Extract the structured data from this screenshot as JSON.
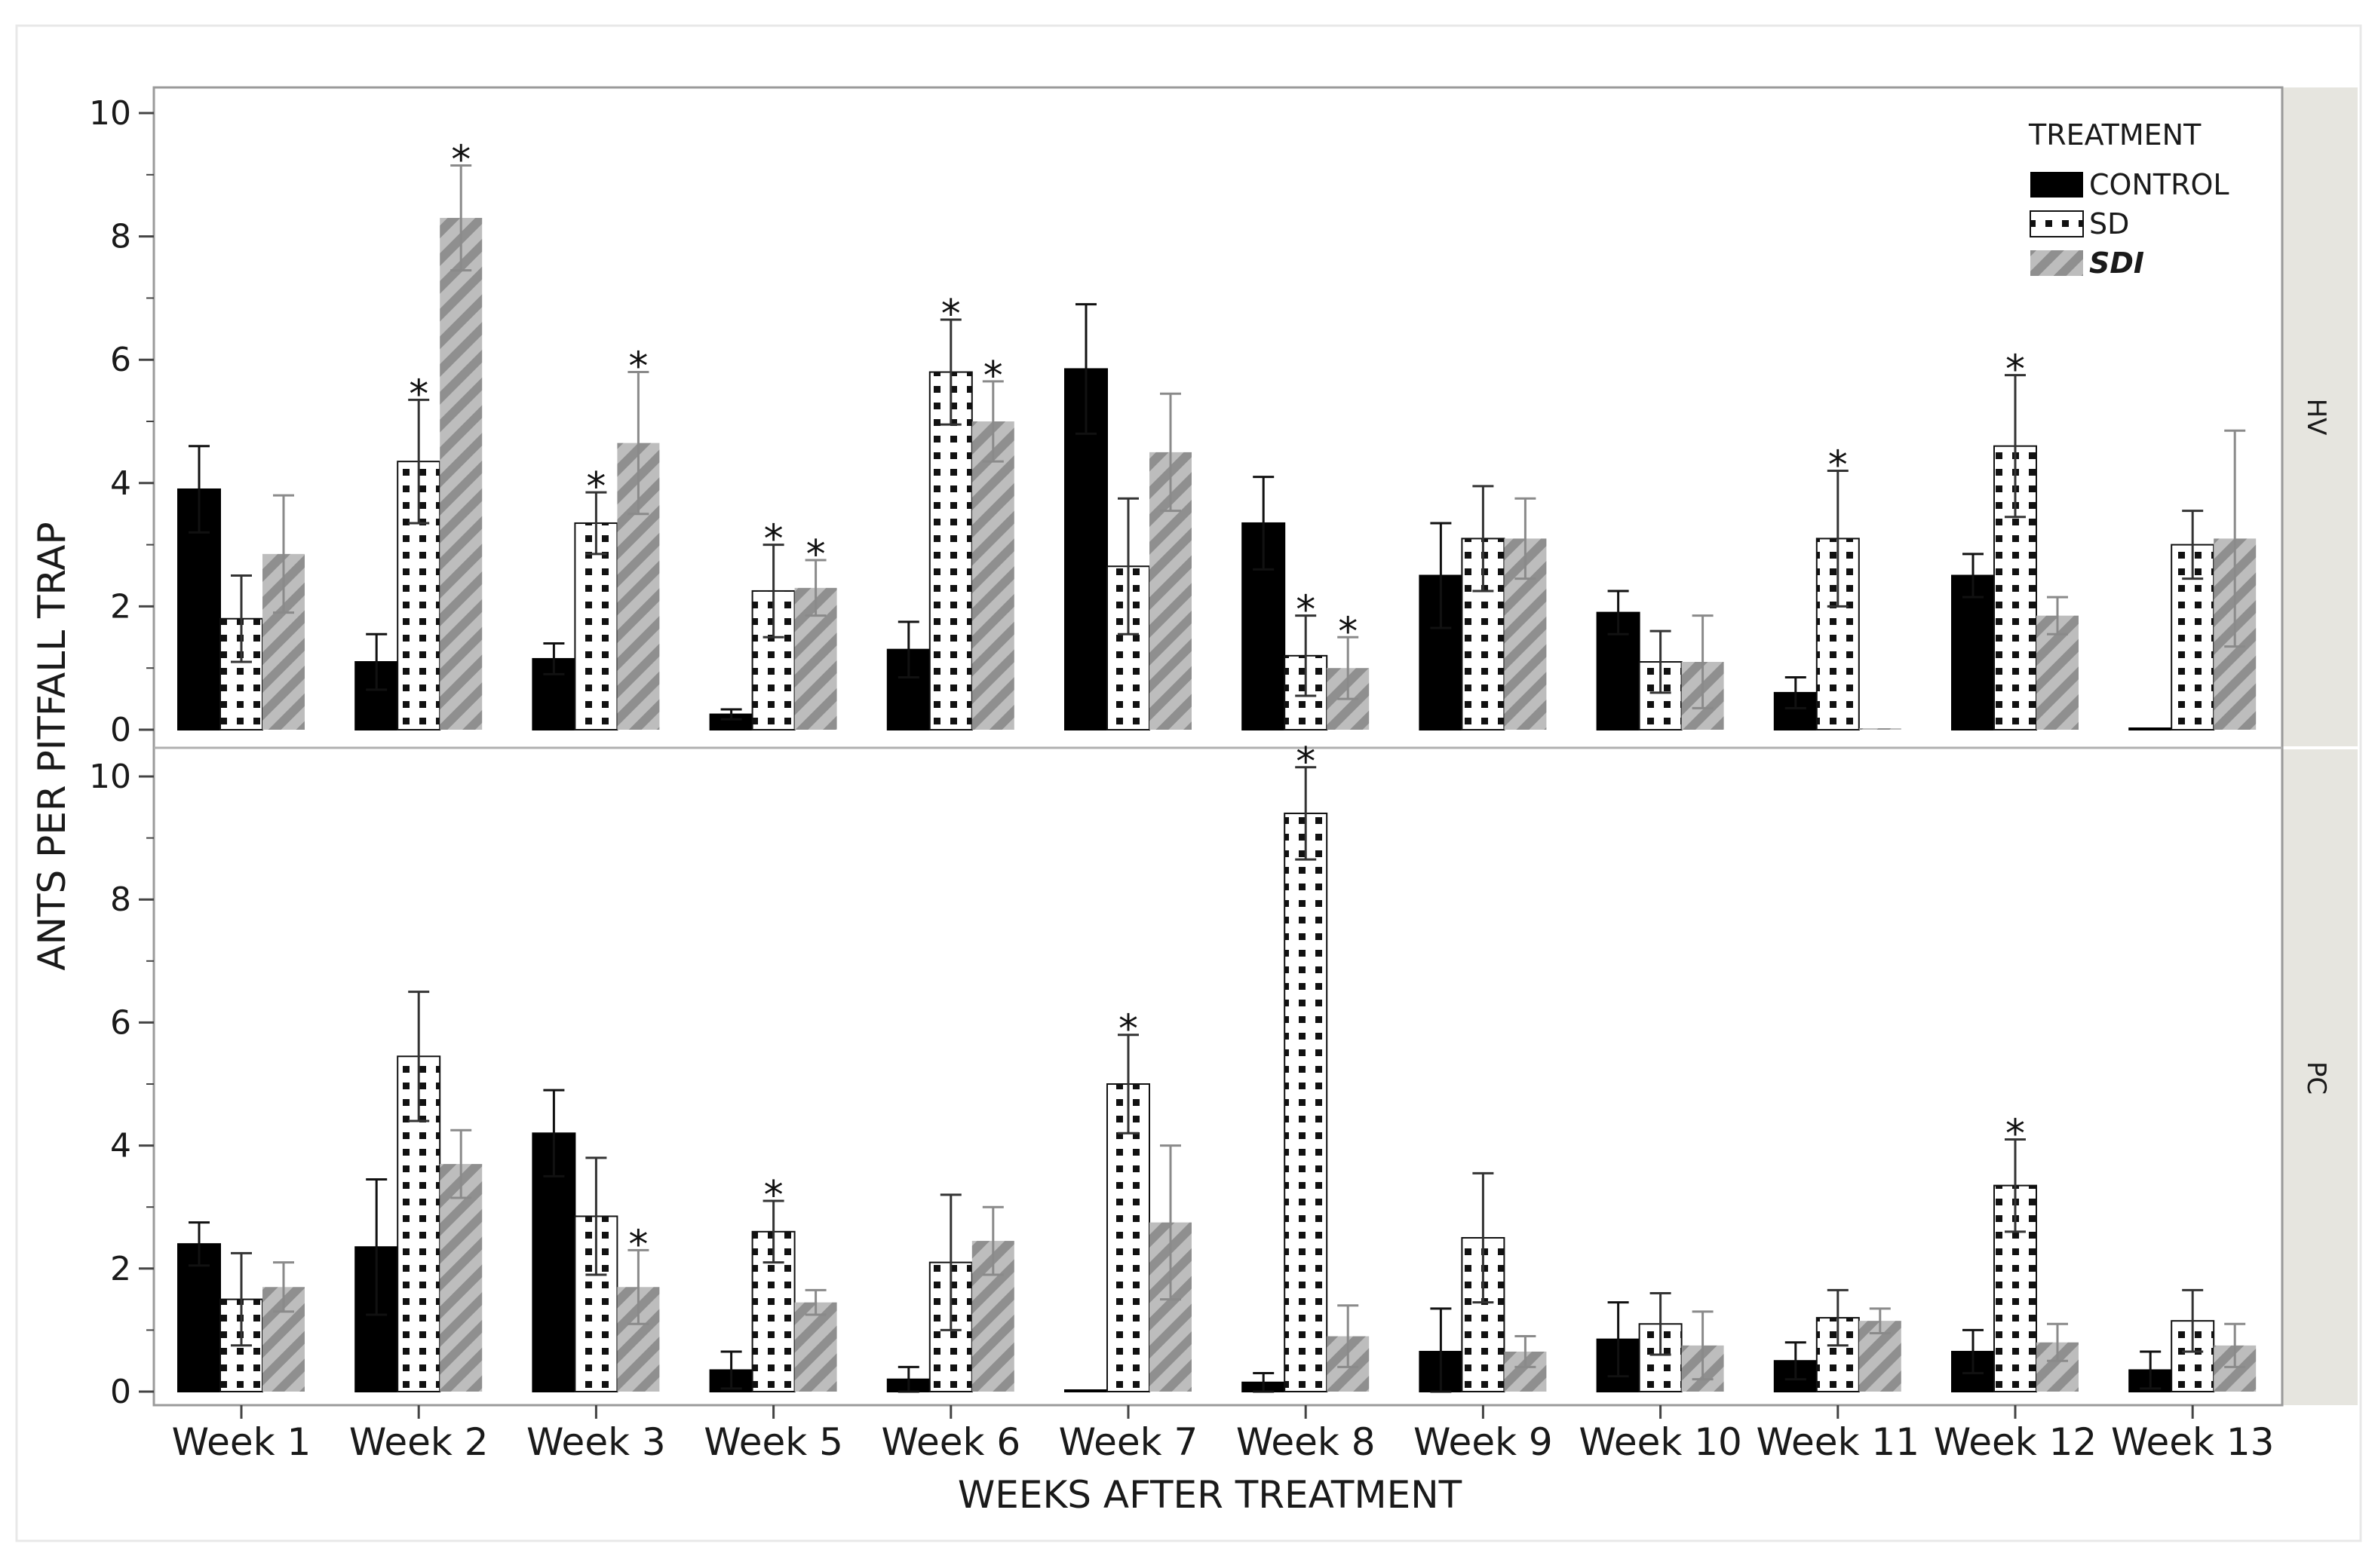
{
  "chart_data": {
    "type": "bar",
    "ylabel": "ANTS PER PITFALL TRAP",
    "xlabel": "WEEKS AFTER TREATMENT",
    "ylim": [
      0,
      10
    ],
    "yticks": [
      0,
      2,
      4,
      6,
      8,
      10
    ],
    "legend": {
      "title": "TREATMENT",
      "placement": "top-right",
      "entries": [
        "CONTROL",
        "SD",
        "SDI"
      ]
    },
    "categories": [
      "Week 1",
      "Week 2",
      "Week 3",
      "Week 5",
      "Week 6",
      "Week 7",
      "Week 8",
      "Week 9",
      "Week 10",
      "Week 11",
      "Week 12",
      "Week 13"
    ],
    "panels": [
      {
        "label": "HV",
        "series": [
          {
            "name": "CONTROL",
            "values": [
              3.9,
              1.1,
              1.15,
              0.25,
              1.3,
              5.85,
              3.35,
              2.5,
              1.9,
              0.6,
              2.5,
              0.0
            ],
            "errors": [
              0.7,
              0.45,
              0.25,
              0.08,
              0.45,
              1.05,
              0.75,
              0.85,
              0.35,
              0.25,
              0.35,
              0.0
            ],
            "significant": [
              false,
              false,
              false,
              false,
              false,
              false,
              false,
              false,
              false,
              false,
              false,
              false
            ]
          },
          {
            "name": "SD",
            "values": [
              1.8,
              4.35,
              3.35,
              2.25,
              5.8,
              2.65,
              1.2,
              3.1,
              1.1,
              3.1,
              4.6,
              3.0
            ],
            "errors": [
              0.7,
              1.0,
              0.5,
              0.75,
              0.85,
              1.1,
              0.65,
              0.85,
              0.5,
              1.1,
              1.15,
              0.55
            ],
            "significant": [
              false,
              true,
              true,
              true,
              true,
              false,
              true,
              false,
              false,
              true,
              true,
              false
            ]
          },
          {
            "name": "SDI",
            "values": [
              2.85,
              8.3,
              4.65,
              2.3,
              5.0,
              4.5,
              1.0,
              3.1,
              1.1,
              0.0,
              1.85,
              3.1
            ],
            "errors": [
              0.95,
              0.85,
              1.15,
              0.45,
              0.65,
              0.95,
              0.5,
              0.65,
              0.75,
              0.0,
              0.3,
              1.75
            ],
            "significant": [
              false,
              true,
              true,
              true,
              true,
              false,
              true,
              false,
              false,
              false,
              false,
              false
            ]
          }
        ]
      },
      {
        "label": "PC",
        "series": [
          {
            "name": "CONTROL",
            "values": [
              2.4,
              2.35,
              4.2,
              0.35,
              0.2,
              0.0,
              0.15,
              0.65,
              0.85,
              0.5,
              0.65,
              0.35
            ],
            "errors": [
              0.35,
              1.1,
              0.7,
              0.3,
              0.2,
              0.0,
              0.15,
              0.7,
              0.6,
              0.3,
              0.35,
              0.3
            ],
            "significant": [
              false,
              false,
              false,
              false,
              false,
              false,
              false,
              false,
              false,
              false,
              false,
              false
            ]
          },
          {
            "name": "SD",
            "values": [
              1.5,
              5.45,
              2.85,
              2.6,
              2.1,
              5.0,
              9.4,
              2.5,
              1.1,
              1.2,
              3.35,
              1.15
            ],
            "errors": [
              0.75,
              1.05,
              0.95,
              0.5,
              1.1,
              0.8,
              0.75,
              1.05,
              0.5,
              0.45,
              0.75,
              0.5
            ],
            "significant": [
              false,
              false,
              false,
              true,
              false,
              true,
              true,
              false,
              false,
              false,
              true,
              false
            ]
          },
          {
            "name": "SDI",
            "values": [
              1.7,
              3.7,
              1.7,
              1.45,
              2.45,
              2.75,
              0.9,
              0.65,
              0.75,
              1.15,
              0.8,
              0.75
            ],
            "errors": [
              0.4,
              0.55,
              0.6,
              0.2,
              0.55,
              1.25,
              0.5,
              0.25,
              0.55,
              0.2,
              0.3,
              0.35
            ],
            "significant": [
              false,
              false,
              true,
              false,
              false,
              false,
              false,
              false,
              false,
              false,
              false,
              false
            ]
          }
        ]
      }
    ],
    "colors": {
      "control": "#000000",
      "sd": "#ffffff",
      "sdi": "#a6a6a6",
      "frame": "#9a9a9a",
      "strip": "#e6e5df"
    },
    "significance_marker": "*"
  }
}
